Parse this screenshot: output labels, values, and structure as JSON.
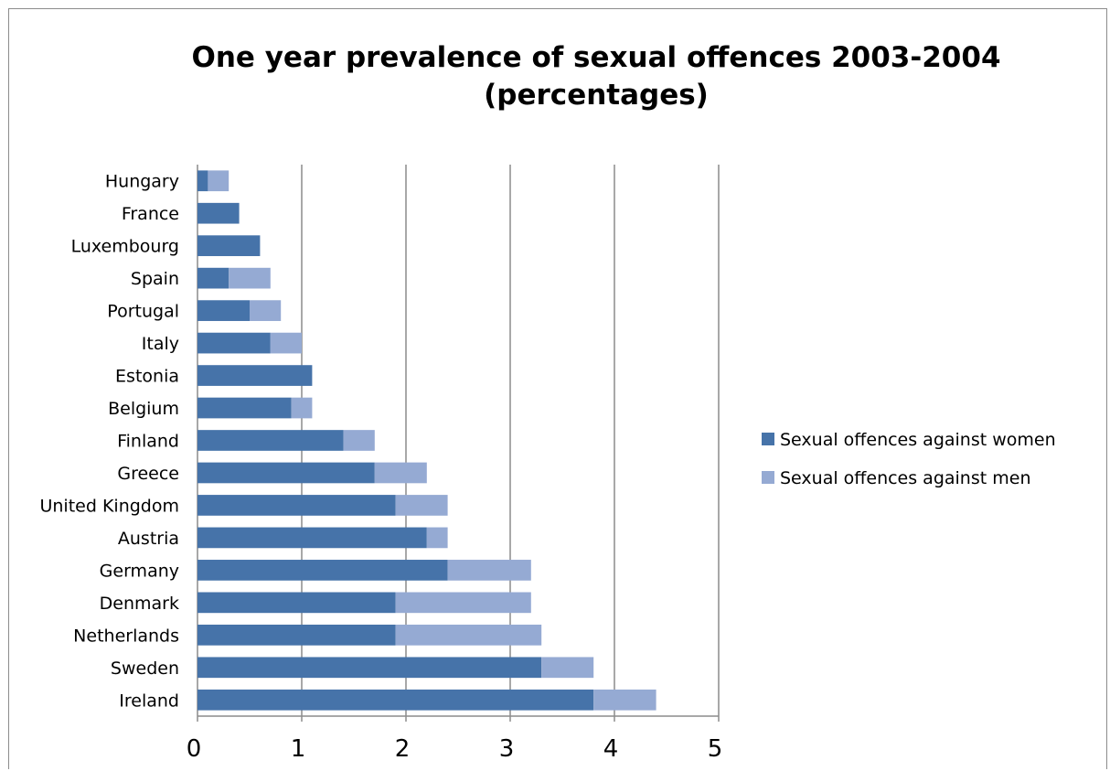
{
  "chart_data": {
    "type": "bar",
    "orientation": "horizontal",
    "stacked": true,
    "title": "One year prevalence of sexual offences 2003-2004",
    "title_line2": "(percentages)",
    "categories": [
      "Hungary",
      "France",
      "Luxembourg",
      "Spain",
      "Portugal",
      "Italy",
      "Estonia",
      "Belgium",
      "Finland",
      "Greece",
      "United Kingdom",
      "Austria",
      "Germany",
      "Denmark",
      "Netherlands",
      "Sweden",
      "Ireland"
    ],
    "series": [
      {
        "name": "Sexual offences against women",
        "color": "#4673a9",
        "values": [
          0.1,
          0.4,
          0.6,
          0.3,
          0.5,
          0.7,
          1.1,
          0.9,
          1.4,
          1.7,
          1.9,
          2.2,
          2.4,
          1.9,
          1.9,
          3.3,
          3.8
        ]
      },
      {
        "name": "Sexual offences against men",
        "color": "#95aad3",
        "values": [
          0.2,
          0.0,
          0.0,
          0.4,
          0.3,
          0.3,
          0.0,
          0.2,
          0.3,
          0.5,
          0.5,
          0.2,
          0.8,
          1.3,
          1.4,
          0.5,
          0.6
        ]
      }
    ],
    "xlim": [
      0,
      5
    ],
    "xticks": [
      "0",
      "1",
      "2",
      "3",
      "4",
      "5"
    ],
    "grid": true,
    "legend_position": "right"
  }
}
